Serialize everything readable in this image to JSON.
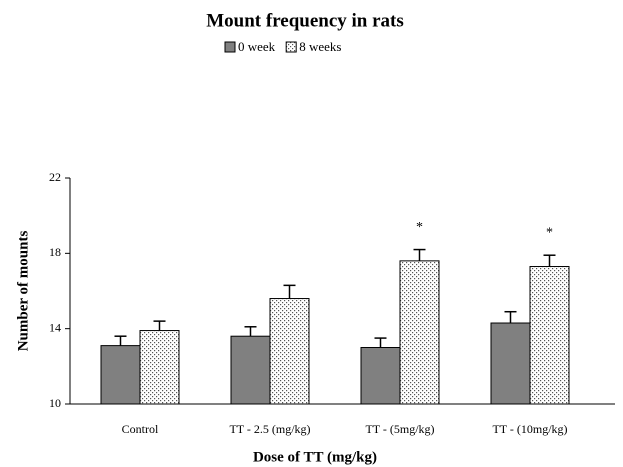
{
  "chart_data": {
    "type": "bar",
    "title": "Mount frequency in rats",
    "xlabel": "Dose of TT (mg/kg)",
    "ylabel": "Number of mounts",
    "categories": [
      "Control",
      "TT - 2.5 (mg/kg)",
      "TT - (5mg/kg)",
      "TT - (10mg/kg)"
    ],
    "series": [
      {
        "name": "0 week",
        "color": "#808080",
        "values": [
          13.1,
          13.6,
          13.0,
          14.3
        ],
        "errors": [
          0.5,
          0.5,
          0.5,
          0.6
        ]
      },
      {
        "name": "8 weeks",
        "color": "#ffffff",
        "hatch": "dots",
        "values": [
          13.9,
          15.6,
          17.6,
          17.3
        ],
        "errors": [
          0.5,
          0.7,
          0.6,
          0.6
        ],
        "annotations": [
          null,
          null,
          "*",
          "*"
        ]
      }
    ],
    "ylim": [
      10,
      22
    ],
    "yticks": [
      10,
      14,
      18,
      22
    ],
    "grid": false,
    "legend": "top"
  }
}
